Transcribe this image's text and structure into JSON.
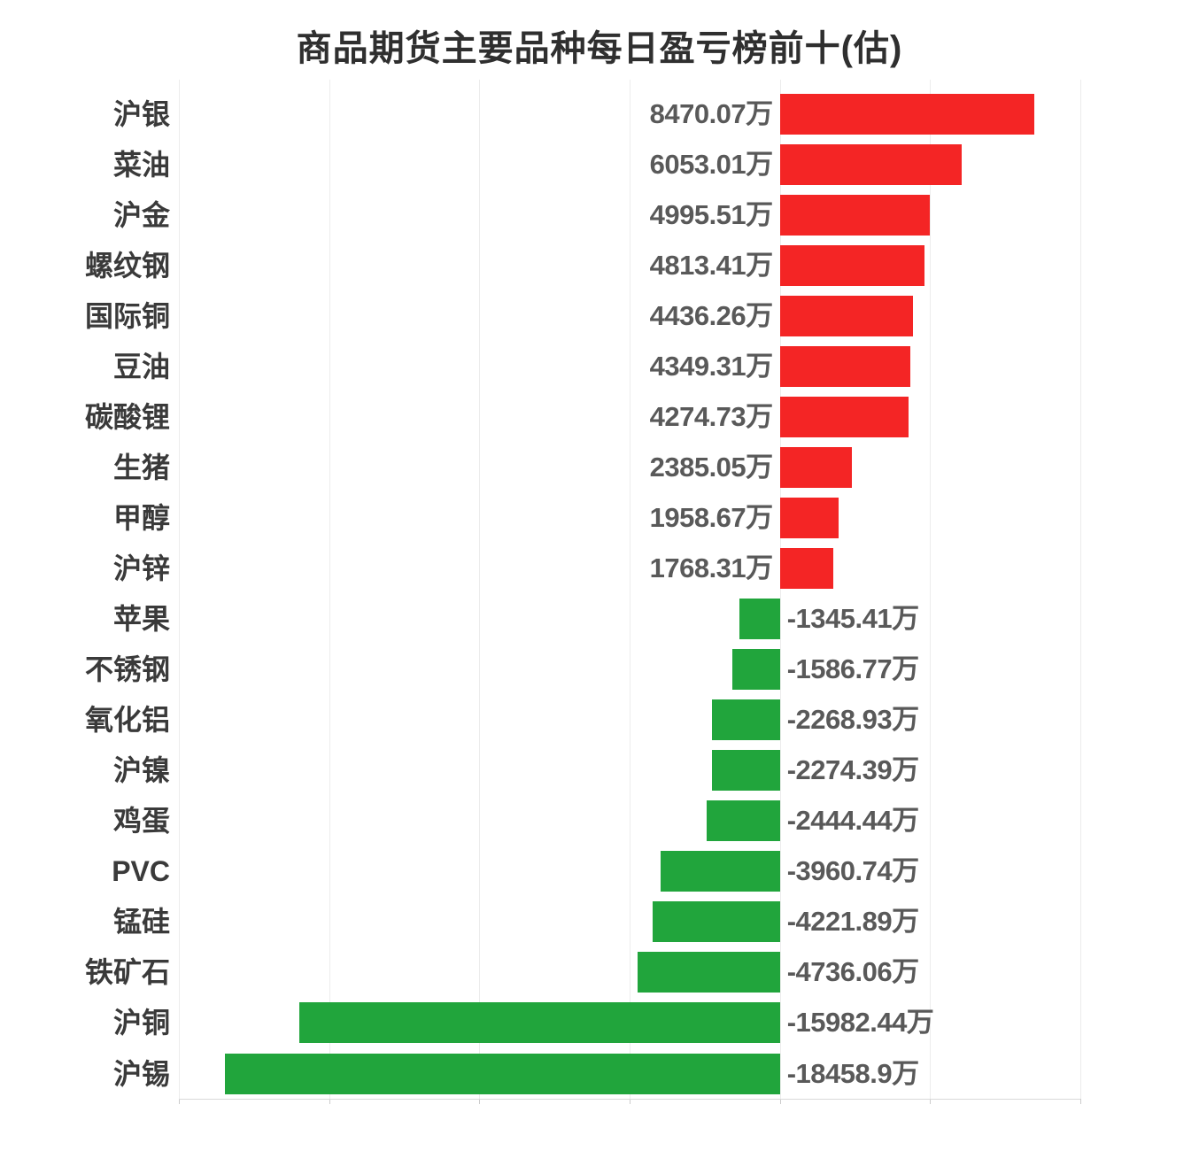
{
  "title": "商品期货主要品种每日盈亏榜前十(估)",
  "chart_data": {
    "type": "bar",
    "orientation": "horizontal",
    "title": "商品期货主要品种每日盈亏榜前十(估)",
    "unit": "万",
    "xlim": [
      -20000,
      10000
    ],
    "grid_interval": 5000,
    "grid": true,
    "legend": "none",
    "categories": [
      "沪银",
      "菜油",
      "沪金",
      "螺纹钢",
      "国际铜",
      "豆油",
      "碳酸锂",
      "生猪",
      "甲醇",
      "沪锌",
      "苹果",
      "不锈钢",
      "氧化铝",
      "沪镍",
      "鸡蛋",
      "PVC",
      "锰硅",
      "铁矿石",
      "沪铜",
      "沪锡"
    ],
    "values": [
      8470.07,
      6053.01,
      4995.51,
      4813.41,
      4436.26,
      4349.31,
      4274.73,
      2385.05,
      1958.67,
      1768.31,
      -1345.41,
      -1586.77,
      -2268.93,
      -2274.39,
      -2444.44,
      -3960.74,
      -4221.89,
      -4736.06,
      -15982.44,
      -18458.9
    ],
    "value_labels": [
      "8470.07万",
      "6053.01万",
      "4995.51万",
      "4813.41万",
      "4436.26万",
      "4349.31万",
      "4274.73万",
      "2385.05万",
      "1958.67万",
      "1768.31万",
      "-1345.41万",
      "-1586.77万",
      "-2268.93万",
      "-2274.39万",
      "-2444.44万",
      "-3960.74万",
      "-4221.89万",
      "-4736.06万",
      "-15982.44万",
      "-18458.9万"
    ],
    "positive_color": "#f42525",
    "negative_color": "#21a53c",
    "label_color": "#595959",
    "category_color": "#3a3a3a",
    "title_color": "#2f2f2f",
    "gridline_color": "#ececec",
    "axis_line_color": "#d9d9d9"
  }
}
